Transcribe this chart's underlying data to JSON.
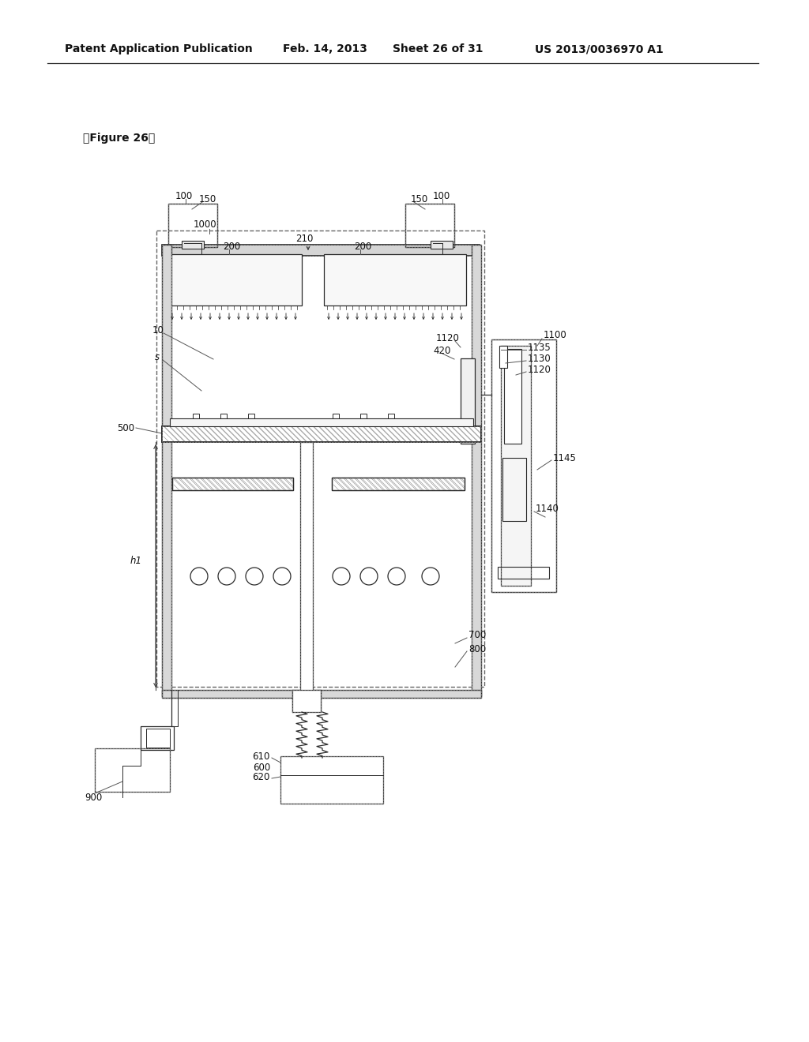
{
  "bg": "#ffffff",
  "lc": "#2a2a2a",
  "header_left": "Patent Application Publication",
  "header_date": "Feb. 14, 2013",
  "header_sheet": "Sheet 26 of 31",
  "header_patent": "US 2013/0036970 A1",
  "fig_label": "【Figure 26】"
}
